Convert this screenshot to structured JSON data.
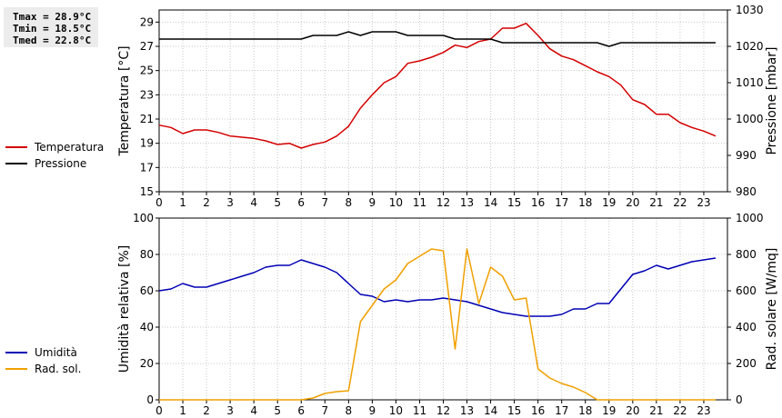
{
  "stats": {
    "tmax": "Tmax = 28.9°C",
    "tmin": "Tmin = 18.5°C",
    "tmed": "Tmed = 22.8°C"
  },
  "chart_data": [
    {
      "type": "line",
      "xlabel": "",
      "ylabel": "Temperatura [°C]",
      "y2label": "Pressione [mbar]",
      "xlim": [
        0,
        24
      ],
      "ylim": [
        15,
        30
      ],
      "y2lim": [
        980,
        1030
      ],
      "xticks": [
        "0",
        "1",
        "2",
        "3",
        "4",
        "5",
        "6",
        "7",
        "8",
        "9",
        "10",
        "11",
        "12",
        "13",
        "14",
        "15",
        "16",
        "17",
        "18",
        "19",
        "20",
        "21",
        "22",
        "23"
      ],
      "yticks": [
        "15",
        "17",
        "19",
        "21",
        "23",
        "25",
        "27",
        "29"
      ],
      "y2ticks": [
        "980",
        "990",
        "1000",
        "1010",
        "1020",
        "1030"
      ],
      "grid": true,
      "legend_position": "left",
      "series": [
        {
          "name": "Temperatura",
          "axis": "left",
          "color": "#d40000",
          "x": [
            0,
            0.5,
            1,
            1.5,
            2,
            2.5,
            3,
            3.5,
            4,
            4.5,
            5,
            5.5,
            6,
            6.5,
            7,
            7.5,
            8,
            8.5,
            9,
            9.5,
            10,
            10.5,
            11,
            11.5,
            12,
            12.5,
            13,
            13.5,
            14,
            14.5,
            15,
            15.5,
            16,
            16.5,
            17,
            17.5,
            18,
            18.5,
            19,
            19.5,
            20,
            20.5,
            21,
            21.5,
            22,
            22.5,
            23,
            23.5
          ],
          "values": [
            20.5,
            20.3,
            19.8,
            20.1,
            20.1,
            19.9,
            19.6,
            19.5,
            19.4,
            19.2,
            18.9,
            19.0,
            18.6,
            18.9,
            19.1,
            19.6,
            20.4,
            21.9,
            23.0,
            24.0,
            24.5,
            25.6,
            25.8,
            26.1,
            26.5,
            27.1,
            26.9,
            27.4,
            27.6,
            28.5,
            28.5,
            28.9,
            27.9,
            26.8,
            26.2,
            25.9,
            25.4,
            24.9,
            24.5,
            23.8,
            22.6,
            22.2,
            21.4,
            21.4,
            20.7,
            20.3,
            20.0,
            19.6
          ]
        },
        {
          "name": "Pressione",
          "axis": "right",
          "color": "#000000",
          "x": [
            0,
            0.5,
            1,
            1.5,
            2,
            2.5,
            3,
            3.5,
            4,
            4.5,
            5,
            5.5,
            6,
            6.5,
            7,
            7.5,
            8,
            8.5,
            9,
            9.5,
            10,
            10.5,
            11,
            11.5,
            12,
            12.5,
            13,
            13.5,
            14,
            14.5,
            15,
            15.5,
            16,
            16.5,
            17,
            17.5,
            18,
            18.5,
            19,
            19.5,
            20,
            20.5,
            21,
            21.5,
            22,
            22.5,
            23,
            23.5
          ],
          "values": [
            1022,
            1022,
            1022,
            1022,
            1022,
            1022,
            1022,
            1022,
            1022,
            1022,
            1022,
            1022,
            1022,
            1023,
            1023,
            1023,
            1024,
            1023,
            1024,
            1024,
            1024,
            1023,
            1023,
            1023,
            1023,
            1022,
            1022,
            1022,
            1022,
            1021,
            1021,
            1021,
            1021,
            1021,
            1021,
            1021,
            1021,
            1021,
            1020,
            1021,
            1021,
            1021,
            1021,
            1021,
            1021,
            1021,
            1021,
            1021
          ]
        }
      ]
    },
    {
      "type": "line",
      "xlabel": "",
      "ylabel": "Umidità relativa [%]",
      "y2label": "Rad. solare [W/mq]",
      "xlim": [
        0,
        24
      ],
      "ylim": [
        0,
        100
      ],
      "y2lim": [
        0,
        1000
      ],
      "xticks": [
        "0",
        "1",
        "2",
        "3",
        "4",
        "5",
        "6",
        "7",
        "8",
        "9",
        "10",
        "11",
        "12",
        "13",
        "14",
        "15",
        "16",
        "17",
        "18",
        "19",
        "20",
        "21",
        "22",
        "23"
      ],
      "yticks": [
        "0",
        "20",
        "40",
        "60",
        "80",
        "100"
      ],
      "y2ticks": [
        "0",
        "200",
        "400",
        "600",
        "800",
        "1000"
      ],
      "grid": true,
      "legend_position": "left",
      "series": [
        {
          "name": "Umidità",
          "axis": "left",
          "color": "#0000b4",
          "x": [
            0,
            0.5,
            1,
            1.5,
            2,
            2.5,
            3,
            3.5,
            4,
            4.5,
            5,
            5.5,
            6,
            6.5,
            7,
            7.5,
            8,
            8.5,
            9,
            9.5,
            10,
            10.5,
            11,
            11.5,
            12,
            12.5,
            13,
            13.5,
            14,
            14.5,
            15,
            15.5,
            16,
            16.5,
            17,
            17.5,
            18,
            18.5,
            19,
            19.5,
            20,
            20.5,
            21,
            21.5,
            22,
            22.5,
            23,
            23.5
          ],
          "values": [
            60,
            61,
            64,
            62,
            62,
            64,
            66,
            68,
            70,
            73,
            74,
            74,
            77,
            75,
            73,
            70,
            64,
            58,
            57,
            54,
            55,
            54,
            55,
            55,
            56,
            55,
            54,
            52,
            50,
            48,
            47,
            46,
            46,
            46,
            47,
            50,
            50,
            53,
            53,
            61,
            69,
            71,
            74,
            72,
            74,
            76,
            77,
            78
          ]
        },
        {
          "name": "Rad. sol.",
          "axis": "right",
          "color": "#f0a000",
          "x": [
            0,
            0.5,
            1,
            1.5,
            2,
            2.5,
            3,
            3.5,
            4,
            4.5,
            5,
            5.5,
            6,
            6.5,
            7,
            7.5,
            8,
            8.5,
            9,
            9.5,
            10,
            10.5,
            11,
            11.5,
            12,
            12.5,
            13,
            13.5,
            14,
            14.5,
            15,
            15.5,
            16,
            16.5,
            17,
            17.5,
            18,
            18.5,
            19,
            19.5,
            20,
            20.5,
            21,
            21.5,
            22,
            22.5,
            23,
            23.5
          ],
          "values": [
            0,
            0,
            0,
            0,
            0,
            0,
            0,
            0,
            0,
            0,
            0,
            0,
            0,
            10,
            35,
            45,
            50,
            430,
            520,
            610,
            660,
            750,
            790,
            830,
            820,
            280,
            830,
            530,
            730,
            680,
            550,
            560,
            170,
            120,
            90,
            70,
            40,
            0,
            0,
            0,
            0,
            0,
            0,
            0,
            0,
            0,
            0,
            0
          ]
        }
      ]
    }
  ]
}
